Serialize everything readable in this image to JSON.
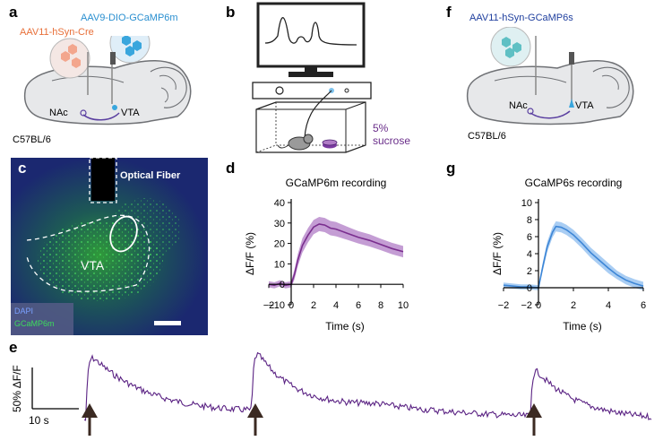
{
  "panels": {
    "a": {
      "label": "a",
      "virus1": "AAV11-hSyn-Cre",
      "virus2": "AAV9-DIO-GCaMP6m",
      "region1": "NAc",
      "region2": "VTA",
      "strain": "C57BL/6",
      "colors": {
        "virus1": "#e8703a",
        "virus2": "#2a8fd0"
      }
    },
    "b": {
      "label": "b",
      "reward_line1": "5%",
      "reward_line2": "sucrose",
      "reward_color": "#6a2e8a"
    },
    "c": {
      "label": "c",
      "fiber_label": "Optical Fiber",
      "region_label": "VTA",
      "legend1": "DAPI",
      "legend2": "GCaMP6m",
      "legend1_color": "#3b6fe0",
      "legend2_color": "#2dc84a"
    },
    "d": {
      "label": "d"
    },
    "f": {
      "label": "f",
      "virus": "AAV11-hSyn-GCaMP6s",
      "region1": "NAc",
      "region2": "VTA",
      "strain": "C57BL/6",
      "virus_color": "#1f3f9e"
    },
    "g": {
      "label": "g"
    },
    "e": {
      "label": "e",
      "scale_y": "50% ΔF/F",
      "scale_x": "10 s",
      "trace_color": "#5a2283"
    }
  },
  "chart_data": [
    {
      "id": "d",
      "type": "line",
      "title": "GCaMP6m recording",
      "xlabel": "Time (s)",
      "ylabel": "ΔF/F  (%)",
      "xlim": [
        -2,
        10
      ],
      "ylim": [
        -10,
        40
      ],
      "xticks": [
        -2,
        0,
        2,
        4,
        6,
        8,
        10
      ],
      "xtick_labels": [
        "−2",
        "0",
        "2",
        "4",
        "6",
        "8",
        "10"
      ],
      "yticks": [
        -10,
        0,
        10,
        20,
        30,
        40
      ],
      "ytick_labels": [
        "−10",
        "0",
        "10",
        "20",
        "30",
        "40"
      ],
      "color": "#7a2e8e",
      "band_color": "#b07cc6",
      "x": [
        -2,
        -1.5,
        -1,
        -0.5,
        0,
        0.3,
        0.6,
        1,
        1.5,
        2,
        2.5,
        3,
        3.5,
        4,
        5,
        6,
        7,
        8,
        9,
        10
      ],
      "mean": [
        0,
        -0.5,
        0.5,
        -0.5,
        0,
        5,
        12,
        19,
        24,
        28,
        29.5,
        29,
        27.5,
        27,
        25,
        23,
        21.5,
        19.5,
        17.5,
        16
      ],
      "sem": [
        1.5,
        1.5,
        1.5,
        1.5,
        1.5,
        2.5,
        3,
        3.5,
        3.5,
        3.5,
        3.5,
        3.5,
        3.5,
        3.5,
        3.2,
        3,
        3,
        2.8,
        2.8,
        2.8
      ]
    },
    {
      "id": "g",
      "type": "line",
      "title": "GCaMP6s recording",
      "xlabel": "Time (s)",
      "ylabel": "ΔF/F  (%)",
      "xlim": [
        -2,
        6
      ],
      "ylim": [
        -2,
        10
      ],
      "xticks": [
        -2,
        0,
        2,
        4,
        6
      ],
      "xtick_labels": [
        "−2",
        "0",
        "2",
        "4",
        "6"
      ],
      "yticks": [
        -2,
        0,
        2,
        4,
        6,
        8,
        10
      ],
      "ytick_labels": [
        "−2",
        "0",
        "2",
        "4",
        "6",
        "8",
        "10"
      ],
      "color": "#3d86d6",
      "band_color": "#8cbcef",
      "x": [
        -2,
        -1.5,
        -1,
        -0.5,
        0,
        0.25,
        0.5,
        0.8,
        1,
        1.3,
        1.6,
        2,
        2.5,
        3,
        3.5,
        4,
        4.5,
        5,
        5.5,
        6
      ],
      "mean": [
        0.3,
        0.2,
        0.1,
        0.1,
        0,
        2.5,
        4.8,
        6.5,
        7.2,
        7.1,
        6.8,
        6.2,
        5.2,
        4.1,
        3.2,
        2.3,
        1.5,
        0.9,
        0.5,
        0.2
      ],
      "sem": [
        0.3,
        0.3,
        0.3,
        0.3,
        0.3,
        0.5,
        0.6,
        0.6,
        0.6,
        0.6,
        0.6,
        0.6,
        0.6,
        0.6,
        0.6,
        0.6,
        0.5,
        0.5,
        0.5,
        0.5
      ]
    }
  ]
}
